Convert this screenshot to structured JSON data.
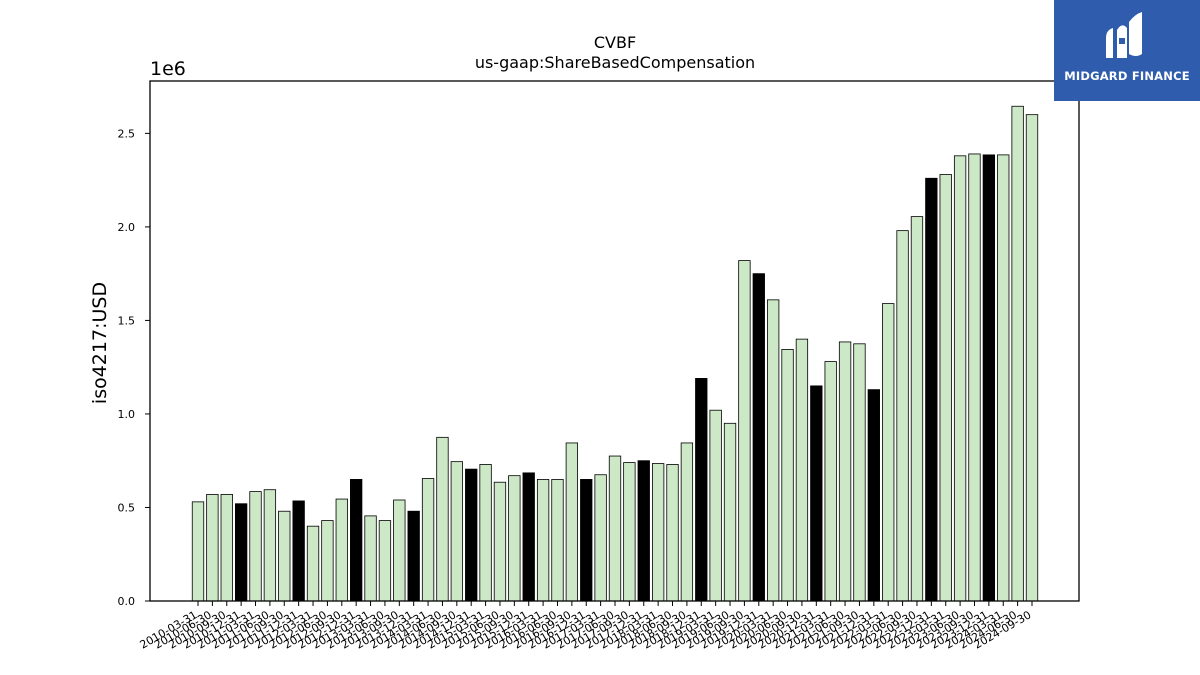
{
  "chart_data": {
    "type": "bar",
    "title": "CVBF",
    "subtitle": "us-gaap:ShareBasedCompensation",
    "ylabel": "iso4217:USD",
    "xlabel": "",
    "y_offset_label": "1e6",
    "ylim": [
      0,
      2780000
    ],
    "yticks": [
      0.0,
      0.5,
      1.0,
      1.5,
      2.0,
      2.5
    ],
    "grid": false,
    "colors": {
      "light": "#cce8c6",
      "dark": "#000000",
      "edge": "#000000"
    },
    "categories": [
      "2010-03-31",
      "2010-06-30",
      "2010-09-30",
      "2010-12-31",
      "2011-03-31",
      "2011-06-30",
      "2011-09-30",
      "2011-12-31",
      "2012-03-31",
      "2012-06-30",
      "2012-09-30",
      "2012-12-31",
      "2013-03-31",
      "2013-06-30",
      "2013-09-30",
      "2013-12-31",
      "2014-03-31",
      "2014-06-30",
      "2014-09-30",
      "2014-12-31",
      "2015-03-31",
      "2015-06-30",
      "2015-09-30",
      "2015-12-31",
      "2016-03-31",
      "2016-06-30",
      "2016-09-30",
      "2016-12-31",
      "2017-03-31",
      "2017-06-30",
      "2017-09-30",
      "2017-12-31",
      "2018-03-31",
      "2018-06-30",
      "2018-09-30",
      "2018-12-31",
      "2019-03-31",
      "2019-06-30",
      "2019-09-30",
      "2019-12-31",
      "2020-03-31",
      "2020-06-30",
      "2020-09-30",
      "2020-12-31",
      "2021-03-31",
      "2021-06-30",
      "2021-09-30",
      "2021-12-31",
      "2022-03-31",
      "2022-06-30",
      "2022-09-30",
      "2022-12-31",
      "2023-03-31",
      "2023-06-30",
      "2023-09-30",
      "2023-12-31",
      "2024-03-31",
      "2024-06-30",
      "2024-09-30"
    ],
    "values": [
      530000,
      570000,
      570000,
      520000,
      585000,
      595000,
      480000,
      535000,
      400000,
      430000,
      545000,
      650000,
      455000,
      430000,
      540000,
      480000,
      655000,
      875000,
      745000,
      705000,
      730000,
      635000,
      670000,
      685000,
      650000,
      650000,
      845000,
      650000,
      675000,
      775000,
      740000,
      750000,
      735000,
      730000,
      845000,
      1190000,
      1020000,
      950000,
      1820000,
      1750000,
      1610000,
      1345000,
      1400000,
      1150000,
      1280000,
      1385000,
      1375000,
      1130000,
      1590000,
      1980000,
      2055000,
      2260000,
      2280000,
      2380000,
      2390000,
      2385000,
      2385000,
      2645000,
      2600000
    ],
    "highlight": [
      false,
      false,
      false,
      true,
      false,
      false,
      false,
      true,
      false,
      false,
      false,
      true,
      false,
      false,
      false,
      true,
      false,
      false,
      false,
      true,
      false,
      false,
      false,
      true,
      false,
      false,
      false,
      true,
      false,
      false,
      false,
      true,
      false,
      false,
      false,
      true,
      false,
      false,
      false,
      true,
      false,
      false,
      false,
      true,
      false,
      false,
      false,
      true,
      false,
      false,
      false,
      true,
      false,
      false,
      false,
      true,
      false,
      false,
      false
    ]
  },
  "logo": {
    "text": "MIDGARD FINANCE",
    "icon": "midgard-logo-icon"
  }
}
